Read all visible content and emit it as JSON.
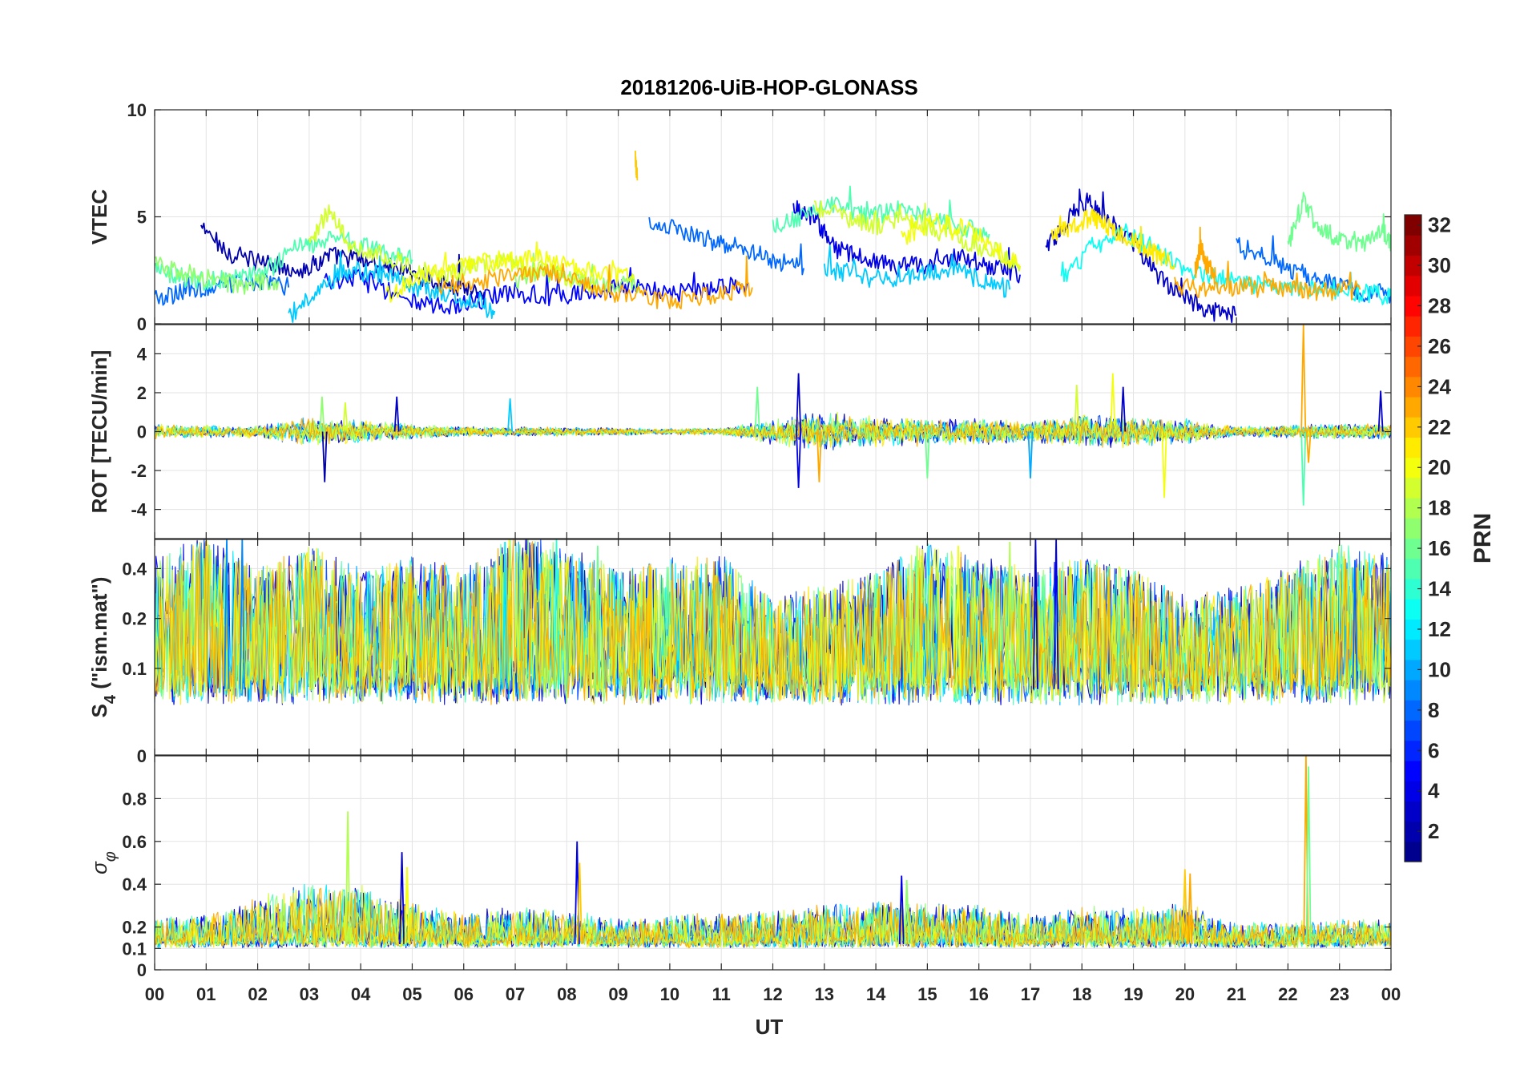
{
  "chart_data": {
    "title": "20181206-UiB-HOP-GLONASS",
    "type": "line",
    "xlabel": "UT",
    "x_range_hours": [
      0,
      24
    ],
    "x_tick_labels": [
      "00",
      "01",
      "02",
      "03",
      "04",
      "05",
      "06",
      "07",
      "08",
      "09",
      "10",
      "11",
      "12",
      "13",
      "14",
      "15",
      "16",
      "17",
      "18",
      "19",
      "20",
      "21",
      "22",
      "23",
      "00"
    ],
    "colorbar": {
      "label": "PRN",
      "range": [
        1,
        32
      ],
      "tick_labels": [
        "2",
        "4",
        "6",
        "8",
        "10",
        "12",
        "14",
        "16",
        "18",
        "20",
        "22",
        "24",
        "26",
        "28",
        "30",
        "32"
      ],
      "colormap": [
        "#00008f",
        "#0000ff",
        "#0080ff",
        "#00ffff",
        "#80ff80",
        "#ffff00",
        "#ff8000",
        "#ff0000",
        "#800000"
      ]
    },
    "panels": [
      {
        "name": "vtec",
        "ylabel": "VTEC",
        "ylim": [
          0,
          10
        ],
        "y_ticks": [
          0,
          5,
          10
        ],
        "y_tick_labels": [
          "0",
          "5",
          "10"
        ],
        "series": [
          {
            "prn": 2,
            "x": [
              0.9,
              1.5,
              2.2,
              2.9,
              3.4,
              4.0,
              4.6,
              5.2,
              5.8,
              6.4
            ],
            "y": [
              4.5,
              3.2,
              2.8,
              2.5,
              3.2,
              3.0,
              2.6,
              2.2,
              1.8,
              1.5
            ]
          },
          {
            "prn": 5,
            "x": [
              3.3,
              4.0,
              4.8,
              5.5,
              6.2,
              7.0,
              7.8,
              8.5,
              9.2,
              10.0,
              10.8,
              11.5
            ],
            "y": [
              2.0,
              2.2,
              1.2,
              0.8,
              1.0,
              1.6,
              1.2,
              1.5,
              1.8,
              1.4,
              1.6,
              1.9
            ]
          },
          {
            "prn": 4,
            "x": [
              12.4,
              12.8,
              13.2,
              13.8,
              14.4,
              15.0,
              15.6,
              16.2,
              16.8
            ],
            "y": [
              5.5,
              5.0,
              3.5,
              3.0,
              2.6,
              2.8,
              3.2,
              2.7,
              2.3
            ]
          },
          {
            "prn": 3,
            "x": [
              17.3,
              17.7,
              18.1,
              18.5,
              19.0,
              19.5,
              20.0,
              20.5,
              21.0
            ],
            "y": [
              3.5,
              4.8,
              5.8,
              4.8,
              3.8,
              2.2,
              1.2,
              0.6,
              0.4
            ]
          },
          {
            "prn": 8,
            "x": [
              0.0,
              0.6,
              1.2,
              2.0,
              2.6
            ],
            "y": [
              1.2,
              1.5,
              1.8,
              2.0,
              1.7
            ]
          },
          {
            "prn": 8,
            "x": [
              9.6,
              10.2,
              10.8,
              11.4,
              12.0,
              12.6
            ],
            "y": [
              4.8,
              4.4,
              3.9,
              3.5,
              3.0,
              2.6
            ]
          },
          {
            "prn": 8,
            "x": [
              21.0,
              21.6,
              22.2,
              22.8,
              23.4,
              24.0
            ],
            "y": [
              3.8,
              3.1,
              2.4,
              1.9,
              1.5,
              1.4
            ]
          },
          {
            "prn": 11,
            "x": [
              2.6,
              3.2,
              3.8,
              4.4,
              5.0,
              5.6,
              6.2,
              6.6
            ],
            "y": [
              0.3,
              1.8,
              2.5,
              2.3,
              1.8,
              1.4,
              1.0,
              0.6
            ]
          },
          {
            "prn": 11,
            "x": [
              13.0,
              13.6,
              14.2,
              14.8,
              15.4,
              16.0,
              16.6
            ],
            "y": [
              2.6,
              2.3,
              2.0,
              2.3,
              2.6,
              2.1,
              1.6
            ]
          },
          {
            "prn": 13,
            "x": [
              17.6,
              18.2,
              18.8,
              19.4,
              20.0,
              20.6,
              21.2,
              21.8,
              22.4,
              23.0,
              23.6,
              24.0
            ],
            "y": [
              2.0,
              3.6,
              4.3,
              3.5,
              2.6,
              2.1,
              1.9,
              1.7,
              1.6,
              1.5,
              1.4,
              1.3
            ]
          },
          {
            "prn": 15,
            "x": [
              0.0,
              0.5,
              1.0,
              1.6,
              2.2,
              2.8,
              3.3,
              3.9,
              4.5,
              5.0
            ],
            "y": [
              2.5,
              2.2,
              2.0,
              2.1,
              2.6,
              3.6,
              3.9,
              3.8,
              3.3,
              3.0
            ]
          },
          {
            "prn": 15,
            "x": [
              12.0,
              12.6,
              13.2,
              13.8,
              14.4,
              15.0,
              15.6,
              16.2
            ],
            "y": [
              4.6,
              5.0,
              5.6,
              5.0,
              5.3,
              5.1,
              4.6,
              4.2
            ]
          },
          {
            "prn": 16,
            "x": [
              22.0,
              22.3,
              22.6,
              23.0,
              23.4,
              23.8,
              24.0
            ],
            "y": [
              3.6,
              5.8,
              4.4,
              4.0,
              3.6,
              4.5,
              3.8
            ]
          },
          {
            "prn": 17,
            "x": [
              0.0,
              0.6,
              1.2,
              1.8,
              2.4
            ],
            "y": [
              2.8,
              2.4,
              2.0,
              1.8,
              2.0
            ]
          },
          {
            "prn": 17,
            "x": [
              7.0,
              7.6,
              8.2,
              8.8,
              9.4
            ],
            "y": [
              2.0,
              2.4,
              2.1,
              1.7,
              1.9
            ]
          },
          {
            "prn": 19,
            "x": [
              3.0,
              3.4,
              3.8,
              4.4,
              5.0,
              5.6,
              6.2,
              6.8,
              7.4,
              8.0,
              8.6
            ],
            "y": [
              3.7,
              5.4,
              3.6,
              3.3,
              2.6,
              2.2,
              2.7,
              2.9,
              2.5,
              2.2,
              1.8
            ]
          },
          {
            "prn": 19,
            "x": [
              12.8,
              13.4,
              14.0,
              14.6,
              15.2,
              15.8,
              16.4,
              16.8
            ],
            "y": [
              5.4,
              5.0,
              4.6,
              4.9,
              4.3,
              3.8,
              3.3,
              2.7
            ]
          },
          {
            "prn": 20,
            "x": [
              4.5,
              5.1,
              5.7,
              6.3,
              6.9,
              7.5,
              8.1,
              8.7,
              9.3
            ],
            "y": [
              1.3,
              2.2,
              2.5,
              2.9,
              3.0,
              3.1,
              2.6,
              2.3,
              2.1
            ]
          },
          {
            "prn": 20,
            "x": [
              14.5,
              15.1,
              15.7,
              16.3,
              16.8
            ],
            "y": [
              4.0,
              4.8,
              4.5,
              3.6,
              2.6
            ]
          },
          {
            "prn": 21,
            "x": [
              17.4,
              17.8,
              18.2,
              18.6,
              19.0,
              19.4,
              19.8
            ],
            "y": [
              4.0,
              4.6,
              5.0,
              4.4,
              3.9,
              3.3,
              2.8
            ]
          },
          {
            "prn": 23,
            "x": [
              5.5,
              6.2,
              7.0,
              7.6,
              8.2,
              8.8,
              9.4,
              10.0,
              10.6,
              11.2,
              11.6
            ],
            "y": [
              1.8,
              2.0,
              2.2,
              2.4,
              2.0,
              1.5,
              1.3,
              1.0,
              1.3,
              1.5,
              1.7
            ]
          },
          {
            "prn": 23,
            "x": [
              19.8,
              20.4,
              21.0,
              21.6,
              22.2,
              22.8,
              23.4
            ],
            "y": [
              1.8,
              1.5,
              1.7,
              1.8,
              1.6,
              1.5,
              1.6
            ]
          },
          {
            "prn": 22,
            "x": [
              9.33,
              9.37
            ],
            "y": [
              7.7,
              6.7
            ]
          },
          {
            "prn": 23,
            "x": [
              20.2,
              20.3,
              20.4,
              20.6
            ],
            "y": [
              2.5,
              3.6,
              2.8,
              2.2
            ]
          }
        ]
      },
      {
        "name": "rot",
        "ylabel": "ROT [TECU/min]",
        "ylim": [
          -5.5,
          5.5
        ],
        "y_ticks": [
          -4,
          -2,
          0,
          2,
          4
        ],
        "y_tick_labels": [
          "-4",
          "-2",
          "0",
          "2",
          "4"
        ],
        "baseline": 0.0,
        "noise_profile": {
          "hours": [
            0,
            1,
            2,
            3,
            4,
            5,
            6,
            7,
            8,
            9,
            10,
            11,
            12,
            13,
            14,
            15,
            16,
            17,
            18,
            19,
            20,
            21,
            22,
            23,
            24
          ],
          "amplitude": [
            0.3,
            0.25,
            0.25,
            0.6,
            0.45,
            0.3,
            0.2,
            0.18,
            0.18,
            0.15,
            0.12,
            0.15,
            0.5,
            0.8,
            0.6,
            0.55,
            0.5,
            0.45,
            0.7,
            0.6,
            0.5,
            0.2,
            0.25,
            0.35,
            0.3
          ]
        },
        "spikes": [
          {
            "x": 3.25,
            "y": 1.8,
            "prn": 17
          },
          {
            "x": 3.3,
            "y": -2.6,
            "prn": 2
          },
          {
            "x": 3.7,
            "y": 1.5,
            "prn": 19
          },
          {
            "x": 4.7,
            "y": 1.8,
            "prn": 3
          },
          {
            "x": 6.9,
            "y": 1.7,
            "prn": 11
          },
          {
            "x": 11.7,
            "y": 2.3,
            "prn": 16
          },
          {
            "x": 12.5,
            "y": 3.0,
            "prn": 3
          },
          {
            "x": 12.5,
            "y": -2.9,
            "prn": 4
          },
          {
            "x": 12.9,
            "y": -2.6,
            "prn": 23
          },
          {
            "x": 15.0,
            "y": -2.4,
            "prn": 16
          },
          {
            "x": 17.0,
            "y": -2.4,
            "prn": 10
          },
          {
            "x": 17.9,
            "y": 2.4,
            "prn": 19
          },
          {
            "x": 18.6,
            "y": 3.0,
            "prn": 20
          },
          {
            "x": 18.8,
            "y": 2.3,
            "prn": 3
          },
          {
            "x": 19.6,
            "y": -3.4,
            "prn": 20
          },
          {
            "x": 22.3,
            "y": 5.5,
            "prn": 23
          },
          {
            "x": 22.3,
            "y": -3.8,
            "prn": 15
          },
          {
            "x": 22.4,
            "y": -1.6,
            "prn": 23
          },
          {
            "x": 23.8,
            "y": 2.1,
            "prn": 3
          }
        ]
      },
      {
        "name": "s4",
        "ylabel": "S4 (\"ism.mat\")",
        "ylabel_main": "S",
        "ylabel_sub": "4",
        "ylabel_rest": " (\"ism.mat\")",
        "ylim": [
          0.03,
          0.6
        ],
        "y_scale": "log",
        "y_ticks": [
          0.1,
          0.2,
          0.4
        ],
        "y_tick_labels": [
          "0.1",
          "0.2",
          "0.4"
        ],
        "baseline": 0.075,
        "noise_profile": {
          "hours": [
            0,
            1,
            2,
            3,
            4,
            5,
            6,
            7,
            8,
            9,
            10,
            11,
            12,
            13,
            14,
            15,
            16,
            17,
            18,
            19,
            20,
            21,
            22,
            23,
            24
          ],
          "amplitude": [
            0.25,
            0.35,
            0.2,
            0.3,
            0.2,
            0.25,
            0.2,
            0.35,
            0.3,
            0.2,
            0.25,
            0.25,
            0.12,
            0.15,
            0.2,
            0.3,
            0.25,
            0.2,
            0.25,
            0.2,
            0.12,
            0.15,
            0.2,
            0.3,
            0.25
          ]
        },
        "spikes": [
          {
            "x": 1.4,
            "y": 0.6,
            "prn": 9
          },
          {
            "x": 1.7,
            "y": 0.6,
            "prn": 9
          },
          {
            "x": 6.8,
            "y": 0.58,
            "prn": 12
          },
          {
            "x": 7.8,
            "y": 0.6,
            "prn": 14
          },
          {
            "x": 8.6,
            "y": 0.55,
            "prn": 16
          },
          {
            "x": 9.6,
            "y": 0.42,
            "prn": 22
          },
          {
            "x": 14.8,
            "y": 0.55,
            "prn": 18
          },
          {
            "x": 15.6,
            "y": 0.55,
            "prn": 20
          },
          {
            "x": 16.6,
            "y": 0.58,
            "prn": 18
          },
          {
            "x": 17.1,
            "y": 0.6,
            "prn": 3
          },
          {
            "x": 17.5,
            "y": 0.6,
            "prn": 4
          },
          {
            "x": 23.3,
            "y": 0.45,
            "prn": 8
          }
        ]
      },
      {
        "name": "sigma_phi",
        "ylabel": "σφ",
        "ylabel_main": "σ",
        "ylabel_sub": "φ",
        "ylim": [
          0,
          1
        ],
        "y_ticks": [
          0,
          0.1,
          0.2,
          0.4,
          0.6,
          0.8
        ],
        "y_tick_labels": [
          "0",
          "0.1",
          "0.2",
          "0.4",
          "0.6",
          "0.8"
        ],
        "corner_tick_label": "0",
        "baseline": 0.12,
        "noise_profile": {
          "hours": [
            0,
            1,
            2,
            3,
            4,
            5,
            6,
            7,
            8,
            9,
            10,
            11,
            12,
            13,
            14,
            15,
            16,
            17,
            18,
            19,
            20,
            21,
            22,
            23,
            24
          ],
          "amplitude": [
            0.07,
            0.07,
            0.12,
            0.15,
            0.15,
            0.1,
            0.08,
            0.09,
            0.08,
            0.06,
            0.07,
            0.08,
            0.08,
            0.1,
            0.11,
            0.1,
            0.1,
            0.07,
            0.09,
            0.09,
            0.1,
            0.05,
            0.05,
            0.06,
            0.06
          ]
        },
        "spikes": [
          {
            "x": 3.75,
            "y": 0.74,
            "prn": 18
          },
          {
            "x": 4.8,
            "y": 0.55,
            "prn": 3
          },
          {
            "x": 4.9,
            "y": 0.48,
            "prn": 20
          },
          {
            "x": 8.2,
            "y": 0.6,
            "prn": 4
          },
          {
            "x": 8.25,
            "y": 0.5,
            "prn": 22
          },
          {
            "x": 14.5,
            "y": 0.44,
            "prn": 4
          },
          {
            "x": 14.6,
            "y": 0.42,
            "prn": 17
          },
          {
            "x": 20.0,
            "y": 0.47,
            "prn": 22
          },
          {
            "x": 20.1,
            "y": 0.45,
            "prn": 23
          },
          {
            "x": 22.35,
            "y": 1.0,
            "prn": 23
          },
          {
            "x": 22.4,
            "y": 0.95,
            "prn": 16
          }
        ]
      }
    ]
  }
}
